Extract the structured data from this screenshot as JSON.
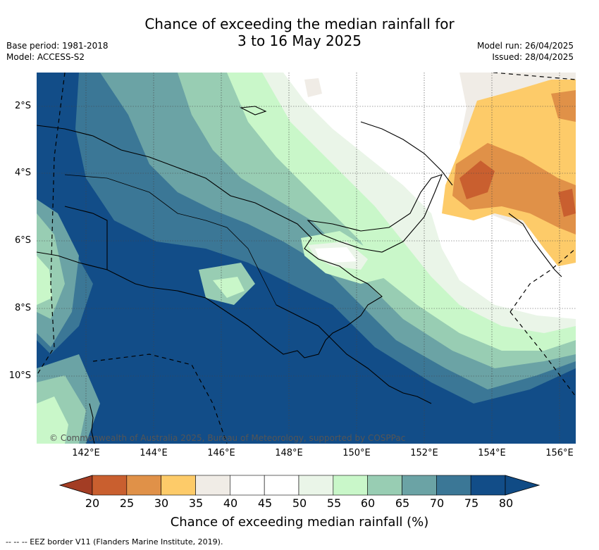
{
  "title": {
    "line1": "Chance of exceeding the median rainfall for",
    "line2": "3 to 16 May 2025"
  },
  "meta": {
    "base_period": "Base period: 1981-2018",
    "model": "Model: ACCESS-S2",
    "model_run": "Model run: 26/04/2025",
    "issued": "Issued: 28/04/2025"
  },
  "map": {
    "copyright": "© Commonwealth of Australia 2025, Bureau of Meteorology, supported by COSPPac",
    "lat_labels": [
      "2°S",
      "4°S",
      "6°S",
      "8°S",
      "10°S"
    ],
    "lon_labels": [
      "142°E",
      "144°E",
      "146°E",
      "148°E",
      "150°E",
      "152°E",
      "154°E",
      "156°E"
    ]
  },
  "colorbar": {
    "title": "Chance of exceeding median rainfall (%)",
    "labels": [
      "20",
      "25",
      "30",
      "35",
      "40",
      "45",
      "50",
      "55",
      "60",
      "65",
      "70",
      "75",
      "80"
    ],
    "colors": [
      "#b2482a",
      "#c95f2f",
      "#e09148",
      "#fdcb69",
      "#f0ece6",
      "#ffffff",
      "#ffffff",
      "#eaf5e8",
      "#c9f7c9",
      "#98cdb3",
      "#6ba3a5",
      "#3b7796",
      "#124d88"
    ],
    "low_arrow_color": "#a33d24",
    "high_arrow_color": "#104b85"
  },
  "footer": "--  --  -- EEZ border V11 (Flanders Marine Institute, 2019)."
}
